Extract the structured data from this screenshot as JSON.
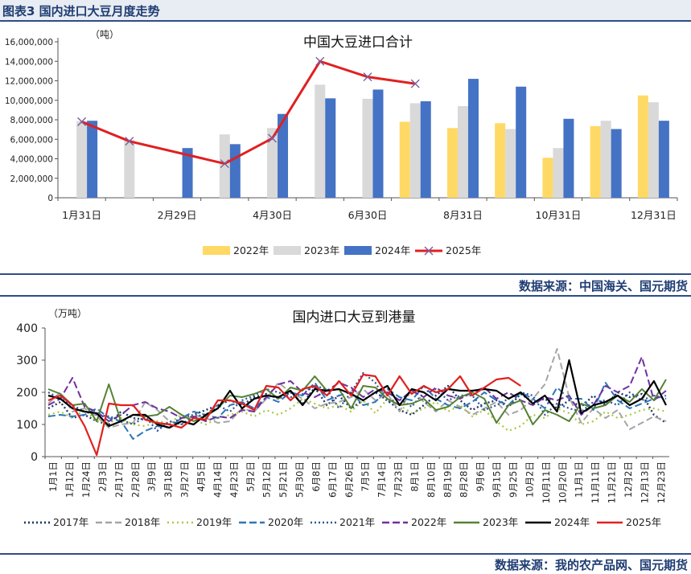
{
  "header": {
    "title": "图表3  国内进口大豆月度走势"
  },
  "source_top": "数据来源：中国海关、国元期货",
  "source_bottom": "数据来源：我的农产品网、国元期货",
  "chart_data": [
    {
      "type": "bar",
      "title": "中国大豆进口合计",
      "unit": "（吨）",
      "ylim": [
        0,
        16000000
      ],
      "ytick_values": [
        0,
        2000000,
        4000000,
        6000000,
        8000000,
        10000000,
        12000000,
        14000000,
        16000000
      ],
      "ytick_labels": [
        "0",
        "2,000,000",
        "4,000,000",
        "6,000,000",
        "8,000,000",
        "10,000,000",
        "12,000,000",
        "14,000,000",
        "16,000,000"
      ],
      "x_labels": [
        {
          "index": 0,
          "label": "1月31日"
        },
        {
          "index": 2,
          "label": "2月29日"
        },
        {
          "index": 4,
          "label": "4月30日"
        },
        {
          "index": 6,
          "label": "6月30日"
        },
        {
          "index": 8,
          "label": "8月31日"
        },
        {
          "index": 10,
          "label": "10月31日"
        },
        {
          "index": 12,
          "label": "12月31日"
        }
      ],
      "category_count": 13,
      "series": [
        {
          "name": "2022年",
          "color": "#ffd965",
          "kind": "bar",
          "values": [
            null,
            null,
            null,
            null,
            null,
            null,
            null,
            7800000,
            7150000,
            7650000,
            4100000,
            7350000,
            10500000
          ]
        },
        {
          "name": "2023年",
          "color": "#d9d9d9",
          "kind": "bar",
          "values": [
            7850000,
            5900000,
            null,
            6500000,
            7150000,
            11600000,
            10150000,
            9700000,
            9400000,
            7050000,
            5100000,
            7900000,
            9800000
          ]
        },
        {
          "name": "2024年",
          "color": "#4472c4",
          "kind": "bar",
          "values": [
            7900000,
            null,
            5100000,
            5500000,
            8600000,
            10200000,
            11100000,
            9900000,
            12200000,
            11400000,
            8100000,
            7050000,
            7900000
          ]
        },
        {
          "name": "2025年",
          "color": "#e02020",
          "kind": "line-x",
          "values": [
            7800000,
            5800000,
            null,
            3500000,
            6100000,
            14000000,
            12400000,
            11700000,
            null,
            null,
            null,
            null,
            null
          ]
        }
      ]
    },
    {
      "type": "line",
      "title": "国内进口大豆到港量",
      "unit": "（万吨）",
      "ylim": [
        0,
        400
      ],
      "ytick_values": [
        0,
        100,
        200,
        300,
        400
      ],
      "x_labels": [
        "1月1日",
        "1月12日",
        "1月24日",
        "2月3日",
        "2月17日",
        "2月28日",
        "3月9日",
        "3月18日",
        "3月27日",
        "4月5日",
        "4月14日",
        "4月23日",
        "5月2日",
        "5月12日",
        "5月21日",
        "5月30日",
        "6月8日",
        "6月17日",
        "6月26日",
        "7月5日",
        "7月14日",
        "7月23日",
        "8月1日",
        "8月10日",
        "8月19日",
        "8月28日",
        "9月6日",
        "9月15日",
        "9月25日",
        "10月2日",
        "10月11日",
        "10月20日",
        "11月1日",
        "11月11日",
        "11月21日",
        "12月2日",
        "12月13日",
        "12月23日"
      ],
      "x_count": 52,
      "series": [
        {
          "name": "2017年",
          "color": "#203864",
          "dash": "2,3",
          "width": 2.4,
          "values": [
            150,
            170,
            120,
            130,
            110,
            100,
            140,
            120,
            115,
            105,
            100,
            120,
            130,
            145,
            160,
            175,
            160,
            185,
            195,
            180,
            200,
            165,
            215,
            160,
            190,
            150,
            175,
            200,
            175,
            145,
            130,
            160,
            190,
            220,
            175,
            145,
            165,
            175,
            155,
            195,
            170,
            180,
            150,
            175,
            155,
            190,
            160,
            200,
            185,
            195,
            130,
            105
          ]
        },
        {
          "name": "2018年",
          "color": "#a5a5a5",
          "dash": "8,4",
          "width": 2,
          "values": [
            165,
            200,
            140,
            150,
            125,
            90,
            100,
            105,
            170,
            145,
            110,
            100,
            130,
            120,
            105,
            110,
            150,
            140,
            180,
            230,
            200,
            180,
            150,
            165,
            170,
            185,
            210,
            175,
            195,
            140,
            210,
            170,
            140,
            175,
            155,
            130,
            150,
            170,
            130,
            145,
            180,
            225,
            335,
            185,
            105,
            150,
            120,
            145,
            85,
            105,
            125,
            110
          ]
        },
        {
          "name": "2019年",
          "color": "#a9c840",
          "dash": "2,4",
          "width": 2.2,
          "values": [
            130,
            140,
            120,
            145,
            110,
            105,
            120,
            100,
            95,
            110,
            105,
            130,
            115,
            100,
            120,
            130,
            140,
            125,
            145,
            130,
            150,
            180,
            165,
            150,
            160,
            140,
            175,
            135,
            180,
            160,
            135,
            150,
            170,
            140,
            160,
            125,
            145,
            110,
            80,
            95,
            130,
            120,
            150,
            135,
            100,
            110,
            140,
            120,
            130,
            145,
            150,
            140
          ]
        },
        {
          "name": "2020年",
          "color": "#2e75b6",
          "dash": "9,4",
          "width": 2,
          "values": [
            125,
            130,
            125,
            130,
            150,
            120,
            110,
            55,
            80,
            95,
            90,
            120,
            140,
            130,
            120,
            160,
            170,
            150,
            185,
            170,
            200,
            190,
            230,
            175,
            190,
            200,
            160,
            170,
            210,
            185,
            175,
            220,
            180,
            160,
            150,
            170,
            200,
            175,
            160,
            200,
            180,
            150,
            215,
            180,
            180,
            145,
            230,
            175,
            150,
            165,
            180,
            190
          ]
        },
        {
          "name": "2021年",
          "color": "#2f5597",
          "dash": "2,3",
          "width": 2.2,
          "values": [
            200,
            180,
            160,
            140,
            130,
            125,
            115,
            100,
            125,
            80,
            110,
            100,
            125,
            130,
            160,
            140,
            175,
            190,
            210,
            200,
            185,
            195,
            220,
            210,
            150,
            200,
            260,
            230,
            170,
            180,
            155,
            200,
            210,
            175,
            190,
            190,
            145,
            160,
            180,
            200,
            190,
            130,
            165,
            150,
            140,
            170,
            175,
            160,
            200,
            175,
            190,
            180
          ]
        },
        {
          "name": "2022年",
          "color": "#7030a0",
          "dash": "9,4",
          "width": 2,
          "values": [
            160,
            180,
            245,
            155,
            140,
            110,
            130,
            160,
            170,
            150,
            140,
            120,
            125,
            110,
            125,
            120,
            145,
            140,
            185,
            225,
            235,
            200,
            185,
            205,
            230,
            215,
            185,
            210,
            200,
            175,
            205,
            185,
            215,
            190,
            180,
            200,
            215,
            180,
            200,
            175,
            160,
            185,
            175,
            190,
            130,
            160,
            220,
            200,
            220,
            310,
            175,
            205
          ]
        },
        {
          "name": "2023年",
          "color": "#548235",
          "dash": "",
          "width": 2,
          "values": [
            210,
            195,
            160,
            165,
            110,
            225,
            110,
            130,
            125,
            130,
            155,
            130,
            110,
            125,
            150,
            190,
            185,
            195,
            210,
            180,
            215,
            205,
            250,
            205,
            210,
            150,
            220,
            215,
            180,
            160,
            165,
            180,
            145,
            155,
            185,
            200,
            180,
            105,
            160,
            175,
            100,
            145,
            130,
            110,
            165,
            150,
            160,
            190,
            170,
            210,
            175,
            240
          ]
        },
        {
          "name": "2024年",
          "color": "#000000",
          "dash": "",
          "width": 2.2,
          "values": [
            190,
            180,
            150,
            140,
            135,
            95,
            110,
            130,
            130,
            100,
            90,
            110,
            100,
            130,
            150,
            205,
            150,
            180,
            190,
            185,
            205,
            160,
            210,
            205,
            210,
            195,
            175,
            200,
            220,
            160,
            210,
            200,
            175,
            210,
            205,
            205,
            210,
            205,
            180,
            200,
            165,
            190,
            140,
            300,
            135,
            160,
            170,
            190,
            160,
            180,
            235,
            160
          ]
        },
        {
          "name": "2025年",
          "color": "#e02020",
          "dash": "",
          "width": 2.2,
          "values": [
            175,
            190,
            160,
            95,
            5,
            165,
            160,
            160,
            115,
            105,
            100,
            90,
            120,
            115,
            175,
            175,
            165,
            145,
            220,
            215,
            175,
            210,
            220,
            190,
            235,
            190,
            255,
            250,
            190,
            250,
            195,
            220,
            200,
            210,
            250,
            190,
            215,
            240,
            245,
            220,
            null,
            null,
            null,
            null,
            null,
            null,
            null,
            null,
            null,
            null,
            null,
            null
          ]
        }
      ]
    }
  ]
}
